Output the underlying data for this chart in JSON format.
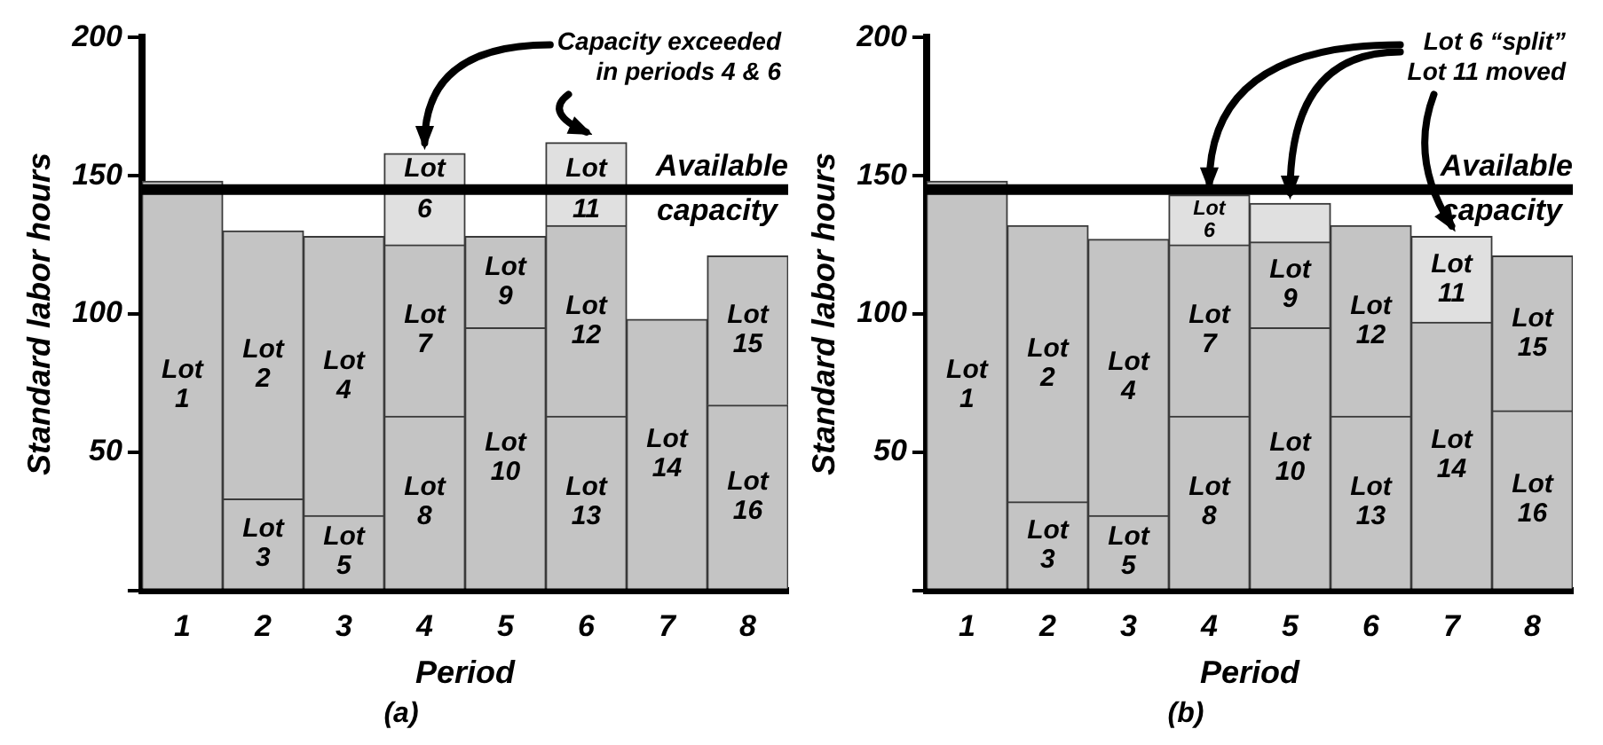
{
  "chart_data": [
    {
      "type": "bar",
      "title": "(a)",
      "xlabel": "Period",
      "ylabel": "Standard labor hours",
      "stacked": true,
      "legend": false,
      "categories": [
        "1",
        "2",
        "3",
        "4",
        "5",
        "6",
        "7",
        "8"
      ],
      "ylim": [
        0,
        200
      ],
      "yticks": [
        {
          "value": 0,
          "label": null
        },
        50,
        100,
        150,
        200
      ],
      "series": [
        {
          "color": "#c4c4c4",
          "colors": [
            "#c4c4c4",
            "#c4c4c4",
            "#c4c4c4",
            "#c4c4c4",
            "#c4c4c4",
            "#c4c4c4",
            "#c4c4c4",
            "#c4c4c4"
          ],
          "values": [
            148,
            33,
            27,
            63,
            95,
            63,
            98,
            67
          ],
          "value_labels": [
            "Lot 1",
            "Lot 3",
            "Lot 5",
            "Lot 8",
            "Lot 10",
            "Lot 13",
            "Lot 14",
            "Lot 16"
          ]
        },
        {
          "color": "#c4c4c4",
          "colors": [
            "#c4c4c4",
            "#c4c4c4",
            "#c4c4c4",
            "#c4c4c4",
            "#c4c4c4",
            "#c4c4c4",
            "#c4c4c4",
            "#c4c4c4"
          ],
          "values": [
            null,
            97,
            101,
            62,
            33,
            69,
            null,
            54
          ],
          "value_labels": [
            null,
            "Lot 2",
            "Lot 4",
            "Lot 7",
            "Lot 9",
            "Lot 12",
            null,
            "Lot 15"
          ]
        },
        {
          "color": "#c4c4c4",
          "colors": [
            "#c4c4c4",
            "#c4c4c4",
            "#c4c4c4",
            "#e0e0e0",
            "#c4c4c4",
            "#e0e0e0",
            "#c4c4c4",
            "#c4c4c4"
          ],
          "values": [
            null,
            null,
            null,
            33,
            null,
            30,
            null,
            null
          ],
          "value_labels": [
            null,
            null,
            null,
            "Lot 6",
            null,
            "Lot 11",
            null,
            null
          ]
        }
      ],
      "ref_lines": [
        {
          "axis": "y",
          "value": 145,
          "label": "Available capacity",
          "color": "#000000"
        }
      ],
      "annotations": [
        {
          "text": "Capacity exceeded in periods 4 & 6",
          "x": "4",
          "y": 158
        }
      ]
    },
    {
      "type": "bar",
      "title": "(b)",
      "xlabel": "Period",
      "ylabel": "Standard labor hours",
      "stacked": true,
      "legend": false,
      "categories": [
        "1",
        "2",
        "3",
        "4",
        "5",
        "6",
        "7",
        "8"
      ],
      "ylim": [
        0,
        200
      ],
      "yticks": [
        {
          "value": 0,
          "label": null
        },
        50,
        100,
        150,
        200
      ],
      "series": [
        {
          "color": "#c4c4c4",
          "colors": [
            "#c4c4c4",
            "#c4c4c4",
            "#c4c4c4",
            "#c4c4c4",
            "#c4c4c4",
            "#c4c4c4",
            "#c4c4c4",
            "#c4c4c4"
          ],
          "values": [
            148,
            32,
            27,
            63,
            95,
            63,
            97,
            65
          ],
          "value_labels": [
            "Lot 1",
            "Lot 3",
            "Lot 5",
            "Lot 8",
            "Lot 10",
            "Lot 13",
            "Lot 14",
            "Lot 16"
          ]
        },
        {
          "color": "#c4c4c4",
          "colors": [
            "#c4c4c4",
            "#c4c4c4",
            "#c4c4c4",
            "#c4c4c4",
            "#c4c4c4",
            "#c4c4c4",
            "#e0e0e0",
            "#c4c4c4"
          ],
          "values": [
            null,
            100,
            100,
            62,
            31,
            69,
            31,
            56
          ],
          "value_labels": [
            null,
            "Lot 2",
            "Lot 4",
            "Lot 7",
            "Lot 9",
            "Lot 12",
            "Lot 11",
            "Lot 15"
          ]
        },
        {
          "color": "#c4c4c4",
          "colors": [
            "#c4c4c4",
            "#c4c4c4",
            "#c4c4c4",
            "#e0e0e0",
            "#e0e0e0",
            "#c4c4c4",
            "#c4c4c4",
            "#c4c4c4"
          ],
          "values": [
            null,
            null,
            null,
            18,
            14,
            null,
            null,
            null
          ],
          "value_labels": [
            null,
            null,
            null,
            "Lot 6",
            null,
            null,
            null,
            null
          ]
        }
      ],
      "ref_lines": [
        {
          "axis": "y",
          "value": 145,
          "label": "Available capacity",
          "color": "#000000"
        }
      ],
      "annotations": [
        {
          "text": "Lot 6 “split” Lot 11 moved",
          "x": "4",
          "y": 143
        }
      ]
    }
  ]
}
